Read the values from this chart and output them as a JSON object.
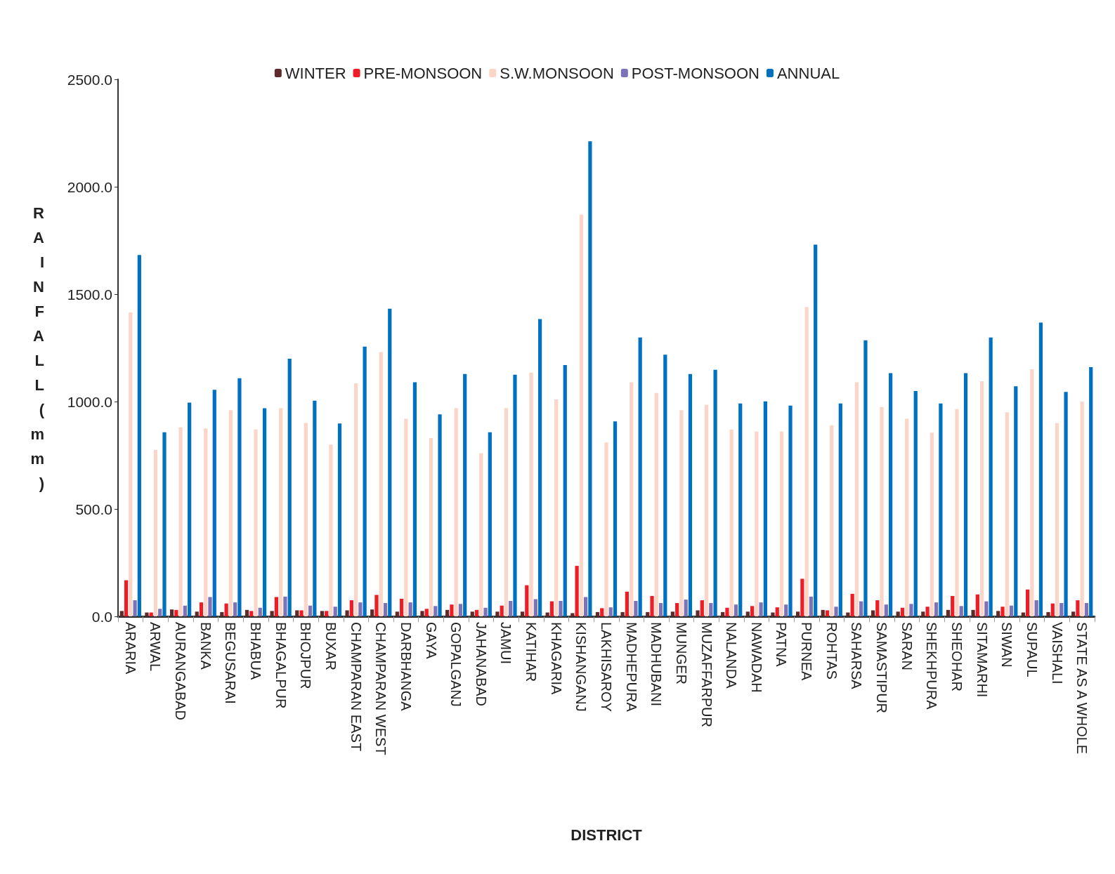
{
  "chart_data": {
    "type": "bar",
    "xlabel": "DISTRICT",
    "ylabel": "RAINFALL (mm)",
    "legend": "top",
    "grid": false,
    "categories": [
      "ARARIA",
      "ARWAL",
      "AURANGABAD",
      "BANKA",
      "BEGUSARAI",
      "BHABUA",
      "BHAGALPUR",
      "BHOJPUR",
      "BUXAR",
      "CHAMPARAN EAST",
      "CHAMPARAN WEST",
      "DARBHANGA",
      "GAYA",
      "GOPALGANJ",
      "JAHANABAD",
      "JAMUI",
      "KATIHAR",
      "KHAGARIA",
      "KISHANGANJ",
      "LAKHISAROY",
      "MADHEPURA",
      "MADHUBANI",
      "MUNGER",
      "MUZAFFARPUR",
      "NALANDA",
      "NAWADAH",
      "PATNA",
      "PURNEA",
      "ROHTAS",
      "SAHARSA",
      "SAMASTIPUR",
      "SARAN",
      "SHEKHPURA",
      "SHEOHAR",
      "SITAMARHI",
      "SIWAN",
      "SUPAUL",
      "VAISHALI",
      "STATE AS A WHOLE"
    ],
    "ylim": [
      0,
      2500
    ],
    "yticks": [
      {
        "value": 0,
        "label": "0.0"
      },
      {
        "value": 500,
        "label": "500.0"
      },
      {
        "value": 1000,
        "label": "1000.0"
      },
      {
        "value": 1500,
        "label": "1500.0"
      },
      {
        "value": 2000,
        "label": "2000.0"
      },
      {
        "value": 2500,
        "label": "2500.0"
      }
    ],
    "series": [
      {
        "name": "WINTER",
        "color": "#5e2b2b",
        "values": [
          25,
          18,
          32,
          22,
          20,
          30,
          25,
          28,
          25,
          28,
          32,
          22,
          25,
          30,
          22,
          22,
          22,
          18,
          15,
          20,
          20,
          20,
          22,
          28,
          20,
          22,
          18,
          22,
          30,
          18,
          28,
          22,
          22,
          30,
          30,
          25,
          18,
          20,
          22
        ]
      },
      {
        "name": "PRE-MONSOON",
        "color": "#ee1c25",
        "values": [
          168,
          18,
          30,
          65,
          60,
          25,
          90,
          28,
          25,
          75,
          100,
          82,
          35,
          55,
          30,
          50,
          145,
          70,
          235,
          38,
          115,
          95,
          62,
          75,
          40,
          48,
          42,
          175,
          28,
          105,
          75,
          40,
          45,
          95,
          102,
          45,
          125,
          60,
          75
        ]
      },
      {
        "name": "S.W.MONSOON",
        "color": "#fbd5c8",
        "values": [
          1415,
          775,
          880,
          875,
          960,
          870,
          970,
          900,
          800,
          1085,
          1230,
          920,
          830,
          970,
          760,
          970,
          1135,
          1010,
          1870,
          810,
          1090,
          1040,
          960,
          985,
          870,
          860,
          860,
          1440,
          890,
          1090,
          975,
          920,
          855,
          965,
          1095,
          950,
          1150,
          900,
          1000
        ]
      },
      {
        "name": "POST-MONSOON",
        "color": "#7b72b8",
        "values": [
          75,
          35,
          50,
          90,
          65,
          40,
          92,
          50,
          45,
          65,
          62,
          65,
          48,
          58,
          40,
          72,
          80,
          72,
          90,
          42,
          72,
          62,
          78,
          62,
          55,
          65,
          55,
          92,
          45,
          70,
          55,
          58,
          65,
          48,
          70,
          50,
          75,
          62,
          62
        ]
      },
      {
        "name": "ANNUAL",
        "color": "#0070c0",
        "values": [
          1682,
          857,
          995,
          1055,
          1109,
          969,
          1199,
          1004,
          898,
          1256,
          1432,
          1090,
          940,
          1128,
          857,
          1125,
          1384,
          1170,
          2212,
          908,
          1298,
          1218,
          1128,
          1148,
          991,
          1001,
          981,
          1730,
          991,
          1285,
          1132,
          1049,
          991,
          1132,
          1298,
          1071,
          1368,
          1045,
          1160
        ]
      }
    ]
  }
}
